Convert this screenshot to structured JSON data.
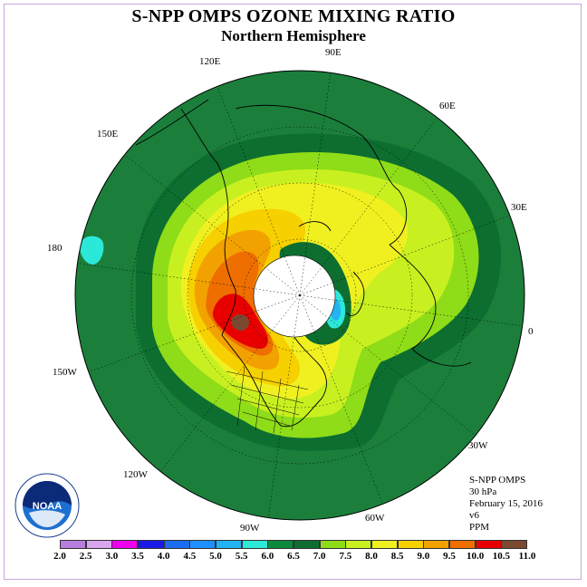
{
  "title": "S-NPP OMPS OZONE MIXING RATIO",
  "subtitle": "Northern Hemisphere",
  "longitude_labels": {
    "lon_90e": "90E",
    "lon_60e": "60E",
    "lon_30e": "30E",
    "lon_0": "0",
    "lon_30w": "30W",
    "lon_60w": "60W",
    "lon_90w": "90W",
    "lon_120w": "120W",
    "lon_150w": "150W",
    "lon_180": "180",
    "lon_150e": "150E",
    "lon_120e": "120E"
  },
  "info": {
    "instrument": "S-NPP OMPS",
    "level": "30 hPa",
    "date": "February 15, 2016",
    "version": "v6",
    "units": "PPM"
  },
  "logo_text": "NOAA",
  "colorbar": {
    "labels": [
      "2.0",
      "2.5",
      "3.0",
      "3.5",
      "4.0",
      "4.5",
      "5.0",
      "5.5",
      "6.0",
      "6.5",
      "7.0",
      "7.5",
      "8.0",
      "8.5",
      "9.0",
      "9.5",
      "10.0",
      "10.5",
      "11.0"
    ],
    "colors": [
      "#b77ee0",
      "#d9a6ee",
      "#ee00ee",
      "#1a1ae6",
      "#1b6cf0",
      "#1e90ff",
      "#22b4f0",
      "#2ce8d8",
      "#0a8a3a",
      "#0d6e30",
      "#8fdc18",
      "#c8f020",
      "#f0f020",
      "#f6d000",
      "#f2a200",
      "#ee6e00",
      "#e80000",
      "#7a4a30"
    ]
  },
  "map_colors": {
    "background_green": "#1b7f3b",
    "dark_green": "#0d6e30",
    "light_green": "#8fdc18",
    "yellow_green": "#c8f020",
    "yellow": "#f0f020",
    "gold": "#f6d000",
    "orange": "#f2a200",
    "dark_orange": "#ee6e00",
    "red": "#e80000",
    "brown": "#7a4a30",
    "cyan": "#2ce8d8",
    "light_blue": "#22b4f0",
    "white": "#ffffff"
  }
}
